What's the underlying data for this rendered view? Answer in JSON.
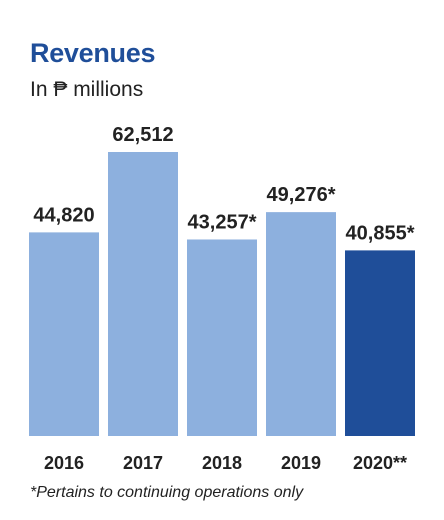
{
  "header": {
    "title": "Revenues",
    "subtitle": "In ₱ millions"
  },
  "footnote": "*Pertains to continuing operations only",
  "colors": {
    "bar": "#8db0de",
    "highlight": "#1f4e99",
    "title": "#1f4e99",
    "text": "#222222"
  },
  "chart_data": {
    "type": "bar",
    "title": "Revenues",
    "subtitle": "In ₱ millions",
    "categories": [
      "2016",
      "2017",
      "2018",
      "2019",
      "2020**"
    ],
    "values": [
      44820,
      62512,
      43257,
      49276,
      40855
    ],
    "value_labels": [
      "44,820",
      "62,512",
      "43,257*",
      "49,276*",
      "40,855*"
    ],
    "highlight_index": 4,
    "ylim": [
      0,
      62512
    ],
    "grid": false,
    "legend": "none"
  }
}
